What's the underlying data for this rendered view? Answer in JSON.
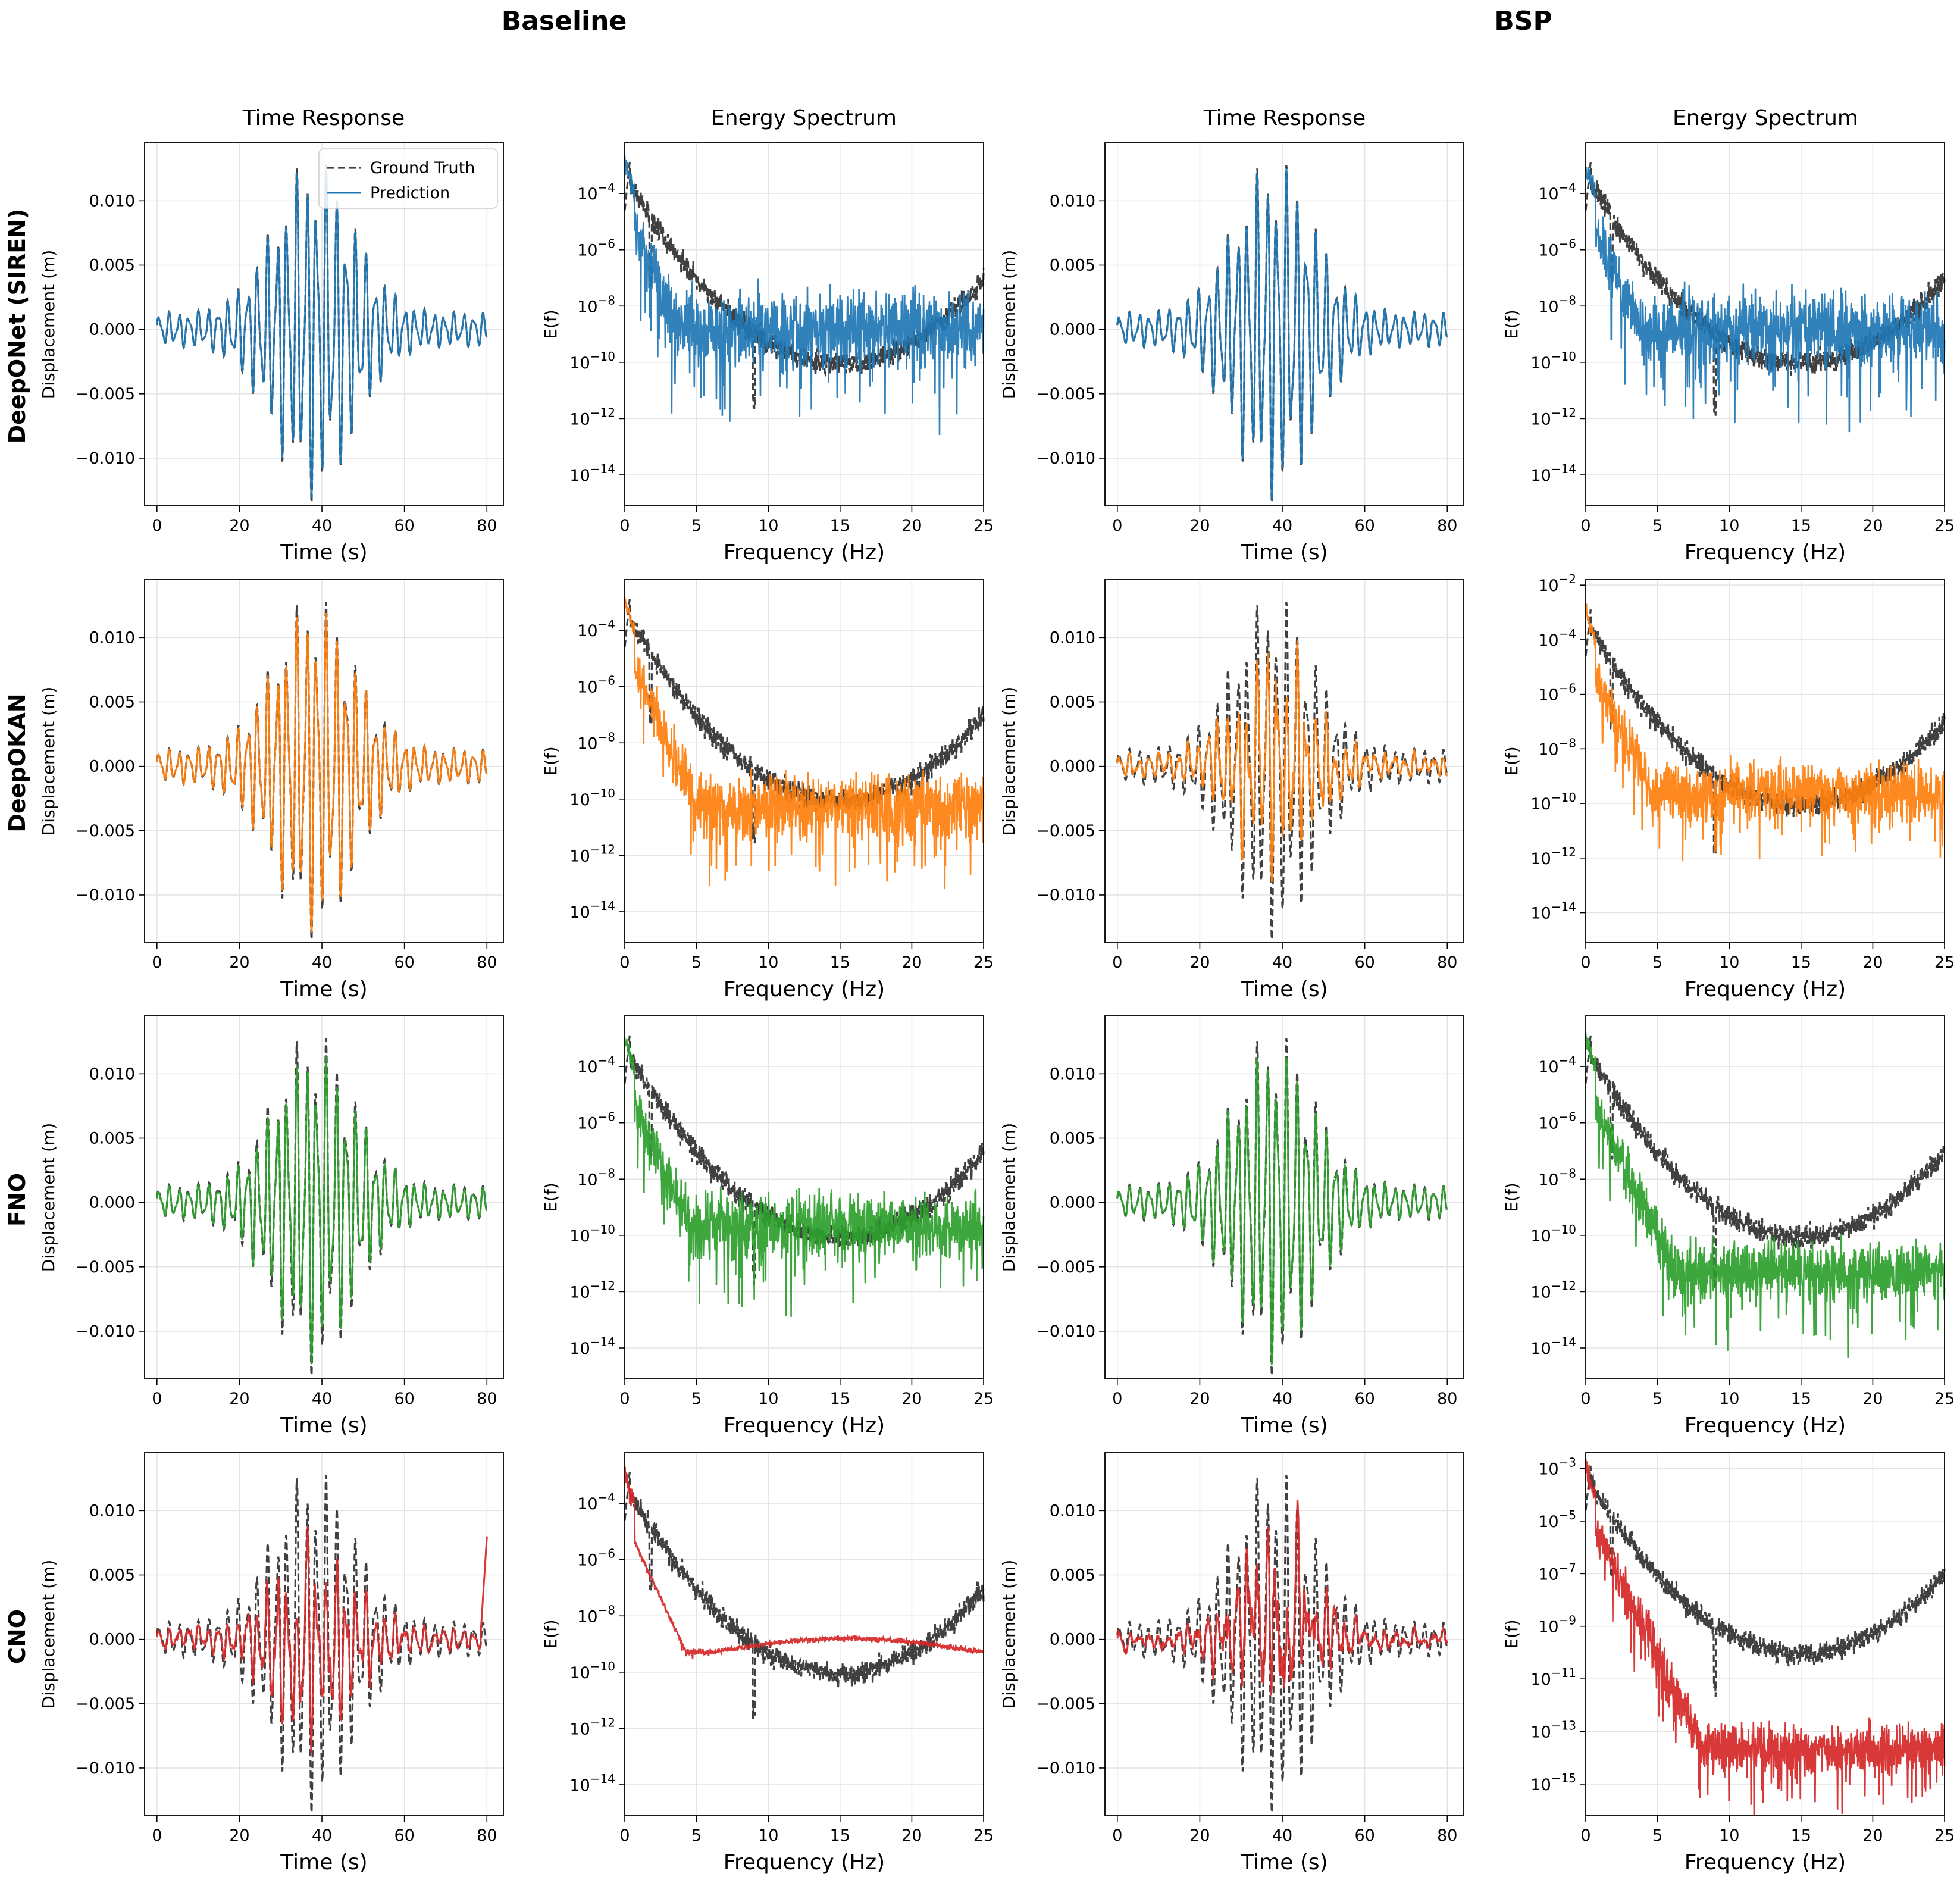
{
  "groups": [
    {
      "label": "Baseline"
    },
    {
      "label": "BSP"
    }
  ],
  "columns": [
    {
      "title": "Time Response"
    },
    {
      "title": "Energy Spectrum"
    },
    {
      "title": "Time Response"
    },
    {
      "title": "Energy Spectrum"
    }
  ],
  "rows": [
    {
      "label": "DeepONet (SIREN)",
      "color": "#1f77b4"
    },
    {
      "label": "DeepOKAN",
      "color": "#ff7f0e"
    },
    {
      "label": "FNO",
      "color": "#2ca02c"
    },
    {
      "label": "CNO",
      "color": "#d62728"
    }
  ],
  "legend": {
    "ground_truth": "Ground Truth",
    "prediction": "Prediction"
  },
  "axes_text": {
    "time_xlabel": "Time (s)",
    "time_ylabel": "Displacement (m)",
    "freq_xlabel": "Frequency (Hz)",
    "freq_ylabel": "E(f)"
  },
  "chart_data": {
    "type": "line",
    "ground_truth_color": "#404040",
    "time_response": {
      "xlim": [
        -3,
        84
      ],
      "xticks": [
        "0",
        "20",
        "40",
        "60",
        "80"
      ],
      "xtick_values": [
        0,
        20,
        40,
        60,
        80
      ],
      "yticks": [
        "−0.010",
        "−0.005",
        "0.000",
        "0.005",
        "0.010"
      ],
      "ytick_values": [
        -0.01,
        -0.005,
        0,
        0.005,
        0.01
      ],
      "ylim": [
        -0.0137,
        0.0145
      ],
      "ground_truth": {
        "peak_displacement": 0.013,
        "peak_time": 43,
        "duration": 80
      }
    },
    "energy_spectrum": {
      "xlim": [
        0,
        25
      ],
      "xticks": [
        "0",
        "5",
        "10",
        "15",
        "20",
        "25"
      ],
      "xtick_values": [
        0,
        5,
        10,
        15,
        20,
        25
      ],
      "ytick_exponents": [
        "−14",
        "−12",
        "−10",
        "−8",
        "−6",
        "−4"
      ],
      "ytick_exponent_values": [
        -14,
        -12,
        -10,
        -8,
        -6,
        -4
      ],
      "log_ylim": [
        -15.1,
        -2.2
      ],
      "ground_truth": {
        "peak_frequency_hz": 0.4,
        "dip_frequency_hz": 9.0,
        "floor_log10": -11.8
      }
    },
    "panels": [
      {
        "row": 0,
        "col": 0,
        "prediction_match": 0.98
      },
      {
        "row": 0,
        "col": 1,
        "prediction_floor_log10": -8.8,
        "tail_noise": 1.1
      },
      {
        "row": 0,
        "col": 2,
        "prediction_match": 0.98
      },
      {
        "row": 0,
        "col": 3,
        "prediction_floor_log10": -8.8,
        "tail_noise": 1.1
      },
      {
        "row": 1,
        "col": 0,
        "prediction_match": 0.95
      },
      {
        "row": 1,
        "col": 1,
        "prediction_floor_log10": -10.3,
        "tail_noise": 1.0
      },
      {
        "row": 1,
        "col": 2,
        "prediction_match": 0.55
      },
      {
        "row": 1,
        "col": 3,
        "ytick_exponents": [
          "−14",
          "−12",
          "−10",
          "−8",
          "−6",
          "−4",
          "−2"
        ],
        "ytick_exponent_values": [
          -14,
          -12,
          -10,
          -8,
          -6,
          -4,
          -2
        ],
        "log_ylim": [
          -15.1,
          -1.8
        ],
        "prediction_floor_log10": -9.6,
        "tail_noise": 0.9
      },
      {
        "row": 2,
        "col": 0,
        "prediction_match": 0.9
      },
      {
        "row": 2,
        "col": 1,
        "prediction_floor_log10": -9.7,
        "tail_noise": 1.0
      },
      {
        "row": 2,
        "col": 2,
        "prediction_match": 0.92
      },
      {
        "row": 2,
        "col": 3,
        "prediction_floor_log10": -11.3,
        "tail_noise": 0.9
      },
      {
        "row": 3,
        "col": 0,
        "prediction_match": 0.55
      },
      {
        "row": 3,
        "col": 1,
        "prediction_floor_log10": -9.3,
        "tail_noise": 0.1
      },
      {
        "row": 3,
        "col": 2,
        "prediction_match": 0.3
      },
      {
        "row": 3,
        "col": 3,
        "ytick_exponents": [
          "−15",
          "−13",
          "−11",
          "−9",
          "−7",
          "−5",
          "−3"
        ],
        "ytick_exponent_values": [
          -15,
          -13,
          -11,
          -9,
          -7,
          -5,
          -3
        ],
        "log_ylim": [
          -16.2,
          -2.4
        ],
        "ground_truth_floor_log10": -11.3,
        "prediction_floor_log10": -13.7,
        "tail_noise": 0.8
      }
    ]
  }
}
